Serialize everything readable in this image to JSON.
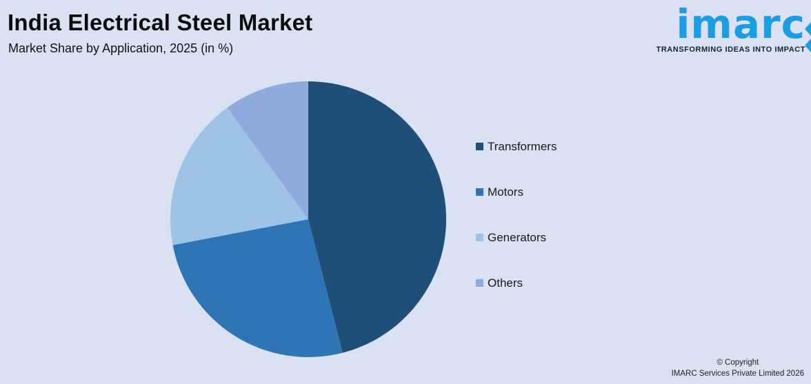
{
  "page": {
    "background": "#D9E1F2"
  },
  "header": {
    "title": "India Electrical Steel Market",
    "subtitle": "Market Share by Application, 2025 (in %)"
  },
  "logo": {
    "text": "imarc",
    "tagline": "TRANSFORMING IDEAS INTO IMPACT",
    "brand_color": "#1B9DE4",
    "tagline_color": "#16212E"
  },
  "chart_data": {
    "type": "pie",
    "title": "India Electrical Steel Market",
    "subtitle": "Market Share by Application, 2025 (in %)",
    "unit": "%",
    "start_angle_deg": -90,
    "direction": "clockwise",
    "legend_position": "right",
    "data_labels": false,
    "slices": [
      {
        "label": "Transformers",
        "value": 46,
        "color": "#1F4E79"
      },
      {
        "label": "Motors",
        "value": 26,
        "color": "#2E75B6"
      },
      {
        "label": "Generators",
        "value": 18,
        "color": "#9DC3E6"
      },
      {
        "label": "Others",
        "value": 10,
        "color": "#8FAADC"
      }
    ]
  },
  "footer": {
    "copyright_line1": "© Copyright",
    "copyright_line2": "IMARC Services Private Limited 2026"
  }
}
